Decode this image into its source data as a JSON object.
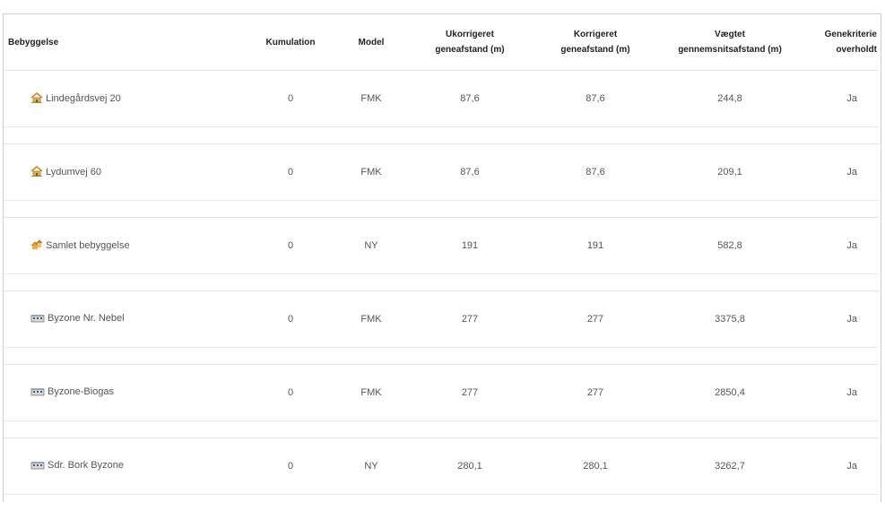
{
  "columns": [
    "Bebyggelse",
    "Kumulation",
    "Model",
    "Ukorrigeret\ngeneafstand (m)",
    "Korrigeret\ngeneafstand (m)",
    "Vægtet\ngennemsnitsafstand (m)",
    "Genekriterie\noverholdt"
  ],
  "rows": [
    {
      "icon": "house-icon",
      "name": "Lindegårdsvej 20",
      "kumulation": "0",
      "model": "FMK",
      "ukorrigeret": "87,6",
      "korrigeret": "87,6",
      "vaegtet": "244,8",
      "overholdt": "Ja"
    },
    {
      "icon": "house-icon",
      "name": "Lydumvej 60",
      "kumulation": "0",
      "model": "FMK",
      "ukorrigeret": "87,6",
      "korrigeret": "87,6",
      "vaegtet": "209,1",
      "overholdt": "Ja"
    },
    {
      "icon": "houses-icon",
      "name": "Samlet bebyggelse",
      "kumulation": "0",
      "model": "NY",
      "ukorrigeret": "191",
      "korrigeret": "191",
      "vaegtet": "582,8",
      "overholdt": "Ja"
    },
    {
      "icon": "town-icon",
      "name": "Byzone Nr. Nebel",
      "kumulation": "0",
      "model": "FMK",
      "ukorrigeret": "277",
      "korrigeret": "277",
      "vaegtet": "3375,8",
      "overholdt": "Ja"
    },
    {
      "icon": "town-icon",
      "name": "Byzone-Biogas",
      "kumulation": "0",
      "model": "FMK",
      "ukorrigeret": "277",
      "korrigeret": "277",
      "vaegtet": "2850,4",
      "overholdt": "Ja"
    },
    {
      "icon": "town-icon",
      "name": "Sdr. Bork Byzone",
      "kumulation": "0",
      "model": "NY",
      "ukorrigeret": "280,1",
      "korrigeret": "280,1",
      "vaegtet": "3262,7",
      "overholdt": "Ja"
    }
  ]
}
